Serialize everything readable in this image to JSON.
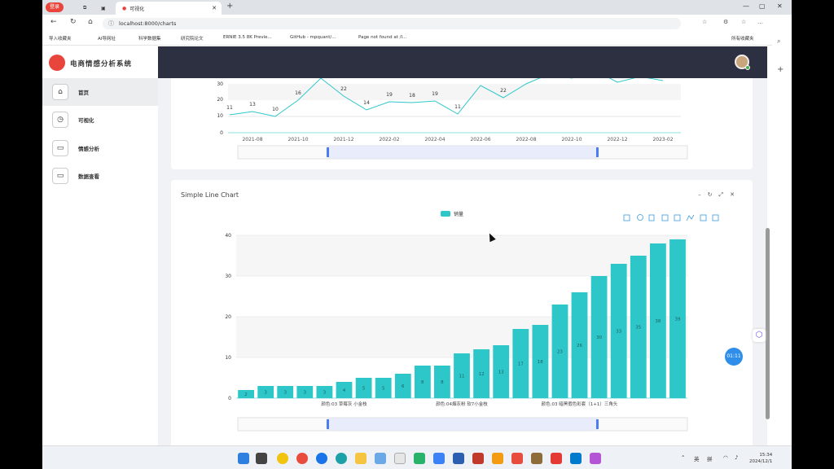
{
  "browser": {
    "profile_label": "登录",
    "active_tab_title": "可视化",
    "new_tab": "+",
    "url": "localhost:8000/charts",
    "bookmarks": [
      "导入收藏夹",
      "AI导网址",
      "科学数据集",
      "研究院论文",
      "ERNIE 3.5 8K Previe...",
      "GitHub - mpquant/...",
      "Page not found at /l...",
      "所有收藏夹"
    ]
  },
  "app": {
    "title": "电商情感分析系统",
    "nav": [
      {
        "label": "首页",
        "icon": "home-icon"
      },
      {
        "label": "可视化",
        "icon": "clock-icon"
      },
      {
        "label": "情感分析",
        "icon": "card-icon"
      },
      {
        "label": "数据查看",
        "icon": "card-icon"
      }
    ]
  },
  "top_chart": {
    "x_ticks": [
      "2021-08",
      "2021-10",
      "2021-12",
      "2022-02",
      "2022-04",
      "2022-06",
      "2022-08",
      "2022-10",
      "2022-12",
      "2023-02"
    ],
    "y_ticks": [
      "0",
      "10",
      "20",
      "30"
    ]
  },
  "chart_data": {
    "type": "bar",
    "title": "Simple Line Chart",
    "legend": [
      "销量"
    ],
    "ylim": [
      0,
      40
    ],
    "y_ticks": [
      "0",
      "10",
      "20",
      "30",
      "40"
    ],
    "x_tick_labels": [
      "颜色:03 草莓灰 小金枝",
      "颜色:04烟灰粉 软7小金枝",
      "颜色:03 暗黑假色彩套（1+1）三角头"
    ],
    "values": [
      2,
      3,
      3,
      3,
      3,
      4,
      5,
      5,
      6,
      8,
      8,
      11,
      12,
      13,
      17,
      18,
      23,
      26,
      30,
      33,
      35,
      38,
      39
    ],
    "bar_color": "#2ec7c9"
  },
  "float_button": "01:11",
  "taskbar": {
    "lang": "英",
    "ime": "拼",
    "time": "15:34",
    "date": "2024/12/1"
  }
}
